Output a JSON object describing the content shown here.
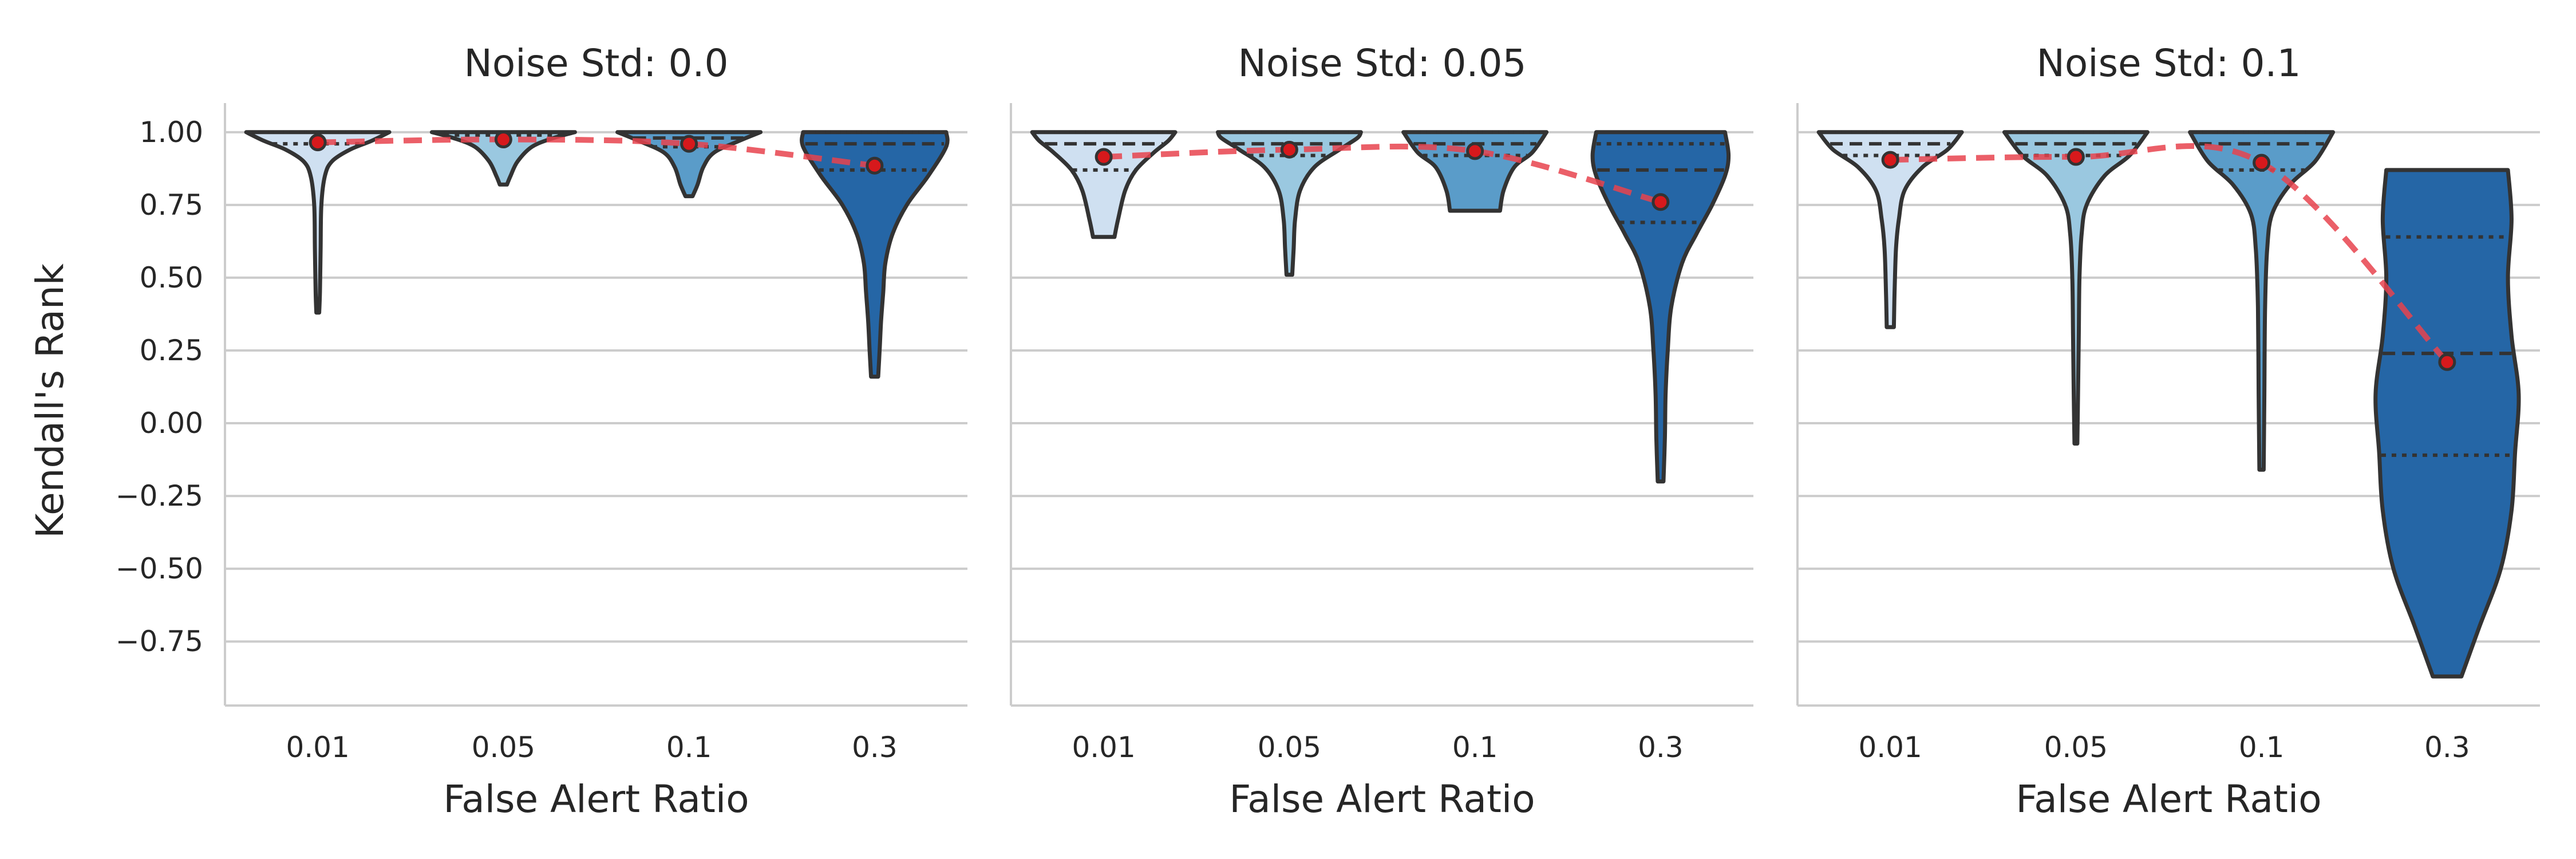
{
  "chart_data": {
    "type": "violin",
    "ylabel": "Kendall's Rank",
    "xlabel": "False Alert Ratio",
    "categories": [
      "0.01",
      "0.05",
      "0.1",
      "0.3"
    ],
    "colors": [
      "#cfe0f1",
      "#9ac8e0",
      "#5a9cc9",
      "#2566a6"
    ],
    "mean_line_color": "#e8434e",
    "ylim": [
      -0.97,
      1.1
    ],
    "yticks": [
      -0.75,
      -0.5,
      -0.25,
      0.0,
      0.25,
      0.5,
      0.75,
      1.0
    ],
    "ytick_labels": [
      "−0.75",
      "−0.50",
      "−0.25",
      "0.00",
      "0.25",
      "0.50",
      "0.75",
      "1.00"
    ],
    "grid": "horizontal",
    "panels": [
      {
        "title": "Noise Std: 0.0",
        "violins": [
          {
            "category": "0.01",
            "min": 0.38,
            "max": 1.0,
            "q1": 0.96,
            "median": 1.0,
            "q3": 1.0,
            "mean": 0.965,
            "profile": [
              [
                0.38,
                0.02
              ],
              [
                0.45,
                0.03
              ],
              [
                0.6,
                0.04
              ],
              [
                0.75,
                0.05
              ],
              [
                0.85,
                0.1
              ],
              [
                0.9,
                0.2
              ],
              [
                0.94,
                0.45
              ],
              [
                0.97,
                0.75
              ],
              [
                1.0,
                1.0
              ]
            ]
          },
          {
            "category": "0.05",
            "min": 0.82,
            "max": 1.0,
            "q1": 0.99,
            "median": 1.0,
            "q3": 1.0,
            "mean": 0.975,
            "profile": [
              [
                0.82,
                0.05
              ],
              [
                0.85,
                0.1
              ],
              [
                0.9,
                0.2
              ],
              [
                0.95,
                0.4
              ],
              [
                0.98,
                0.7
              ],
              [
                1.0,
                1.0
              ]
            ]
          },
          {
            "category": "0.1",
            "min": 0.78,
            "max": 1.0,
            "q1": 0.95,
            "median": 0.98,
            "q3": 1.0,
            "mean": 0.96,
            "profile": [
              [
                0.78,
                0.05
              ],
              [
                0.82,
                0.12
              ],
              [
                0.88,
                0.2
              ],
              [
                0.93,
                0.35
              ],
              [
                0.97,
                0.7
              ],
              [
                1.0,
                1.0
              ]
            ]
          },
          {
            "category": "0.3",
            "min": 0.16,
            "max": 1.0,
            "q1": 0.87,
            "median": 0.96,
            "q3": 1.0,
            "mean": 0.885,
            "profile": [
              [
                0.16,
                0.05
              ],
              [
                0.25,
                0.07
              ],
              [
                0.35,
                0.09
              ],
              [
                0.45,
                0.12
              ],
              [
                0.55,
                0.15
              ],
              [
                0.65,
                0.25
              ],
              [
                0.75,
                0.45
              ],
              [
                0.85,
                0.75
              ],
              [
                0.95,
                1.0
              ],
              [
                1.0,
                1.0
              ]
            ]
          }
        ]
      },
      {
        "title": "Noise Std: 0.05",
        "violins": [
          {
            "category": "0.01",
            "min": 0.64,
            "max": 1.0,
            "q1": 0.87,
            "median": 0.96,
            "q3": 1.0,
            "mean": 0.915,
            "profile": [
              [
                0.64,
                0.15
              ],
              [
                0.7,
                0.2
              ],
              [
                0.8,
                0.3
              ],
              [
                0.87,
                0.45
              ],
              [
                0.93,
                0.7
              ],
              [
                0.97,
                0.9
              ],
              [
                1.0,
                1.0
              ]
            ]
          },
          {
            "category": "0.05",
            "min": 0.51,
            "max": 1.0,
            "q1": 0.92,
            "median": 0.96,
            "q3": 1.0,
            "mean": 0.94,
            "profile": [
              [
                0.51,
                0.04
              ],
              [
                0.6,
                0.06
              ],
              [
                0.7,
                0.08
              ],
              [
                0.8,
                0.15
              ],
              [
                0.88,
                0.35
              ],
              [
                0.94,
                0.7
              ],
              [
                0.98,
                0.95
              ],
              [
                1.0,
                1.0
              ]
            ]
          },
          {
            "category": "0.1",
            "min": 0.73,
            "max": 1.0,
            "q1": 0.92,
            "median": 0.96,
            "q3": 1.0,
            "mean": 0.935,
            "profile": [
              [
                0.73,
                0.35
              ],
              [
                0.8,
                0.4
              ],
              [
                0.88,
                0.55
              ],
              [
                0.93,
                0.8
              ],
              [
                1.0,
                1.0
              ]
            ]
          },
          {
            "category": "0.3",
            "min": -0.2,
            "max": 1.0,
            "q1": 0.69,
            "median": 0.87,
            "q3": 0.96,
            "mean": 0.76,
            "profile": [
              [
                -0.2,
                0.04
              ],
              [
                -0.05,
                0.06
              ],
              [
                0.1,
                0.07
              ],
              [
                0.25,
                0.1
              ],
              [
                0.4,
                0.15
              ],
              [
                0.55,
                0.3
              ],
              [
                0.65,
                0.5
              ],
              [
                0.75,
                0.72
              ],
              [
                0.85,
                0.9
              ],
              [
                0.92,
                0.95
              ],
              [
                1.0,
                0.9
              ]
            ]
          }
        ]
      },
      {
        "title": "Noise Std: 0.1",
        "violins": [
          {
            "category": "0.01",
            "min": 0.33,
            "max": 1.0,
            "q1": 0.92,
            "median": 0.96,
            "q3": 1.0,
            "mean": 0.905,
            "profile": [
              [
                0.33,
                0.05
              ],
              [
                0.45,
                0.06
              ],
              [
                0.6,
                0.08
              ],
              [
                0.7,
                0.12
              ],
              [
                0.8,
                0.2
              ],
              [
                0.88,
                0.45
              ],
              [
                0.94,
                0.8
              ],
              [
                1.0,
                1.0
              ]
            ]
          },
          {
            "category": "0.05",
            "min": -0.07,
            "max": 1.0,
            "q1": 0.92,
            "median": 0.96,
            "q3": 1.0,
            "mean": 0.915,
            "profile": [
              [
                -0.07,
                0.02
              ],
              [
                0.1,
                0.03
              ],
              [
                0.3,
                0.04
              ],
              [
                0.5,
                0.05
              ],
              [
                0.65,
                0.08
              ],
              [
                0.75,
                0.15
              ],
              [
                0.85,
                0.4
              ],
              [
                0.92,
                0.75
              ],
              [
                1.0,
                1.0
              ]
            ]
          },
          {
            "category": "0.1",
            "min": -0.16,
            "max": 1.0,
            "q1": 0.87,
            "median": 0.96,
            "q3": 1.0,
            "mean": 0.895,
            "profile": [
              [
                -0.16,
                0.03
              ],
              [
                0.1,
                0.04
              ],
              [
                0.4,
                0.05
              ],
              [
                0.6,
                0.08
              ],
              [
                0.72,
                0.15
              ],
              [
                0.82,
                0.4
              ],
              [
                0.9,
                0.75
              ],
              [
                1.0,
                1.0
              ]
            ]
          },
          {
            "category": "0.3",
            "min": -0.87,
            "max": 0.87,
            "q1": -0.11,
            "median": 0.24,
            "q3": 0.64,
            "mean": 0.21,
            "profile": [
              [
                -0.87,
                0.2
              ],
              [
                -0.7,
                0.45
              ],
              [
                -0.5,
                0.75
              ],
              [
                -0.3,
                0.9
              ],
              [
                -0.1,
                0.95
              ],
              [
                0.1,
                1.0
              ],
              [
                0.3,
                0.9
              ],
              [
                0.5,
                0.85
              ],
              [
                0.7,
                0.9
              ],
              [
                0.87,
                0.85
              ]
            ]
          }
        ]
      }
    ]
  }
}
